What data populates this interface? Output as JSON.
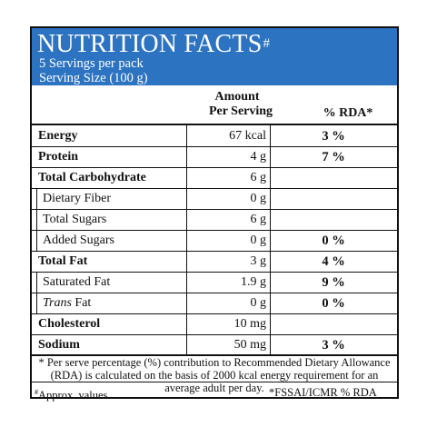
{
  "header": {
    "title": "NUTRITION FACTS",
    "title_mark": "#",
    "servings": "5 Servings per pack",
    "serving_size": "Serving Size (100 g)"
  },
  "columns": {
    "amount_line1": "Amount",
    "amount_line2": "Per Serving",
    "rda": "% RDA*"
  },
  "rows": [
    {
      "name": "Energy",
      "amount": "67 kcal",
      "rda": "3 %"
    },
    {
      "name": "Protein",
      "amount": "4 g",
      "rda": "7 %"
    },
    {
      "name": "Total Carbohydrate",
      "amount": "6 g",
      "rda": ""
    },
    {
      "name": "Dietary Fiber",
      "amount": "0 g",
      "rda": ""
    },
    {
      "name": "Total Sugars",
      "amount": "6 g",
      "rda": ""
    },
    {
      "name": "Added Sugars",
      "amount": "0 g",
      "rda": "0 %"
    },
    {
      "name": "Total Fat",
      "amount": "3 g",
      "rda": "4 %"
    },
    {
      "name": "Saturated Fat",
      "amount": "1.9 g",
      "rda": "9 %"
    },
    {
      "name_italic": "Trans",
      "name": " Fat",
      "amount": "0 g",
      "rda": "0 %"
    },
    {
      "name": "Cholesterol",
      "amount": "10 mg",
      "rda": ""
    },
    {
      "name": "Sodium",
      "amount": "50 mg",
      "rda": "3 %"
    }
  ],
  "footnote": {
    "line1": "* Per serve percentage (%) contribution to Recommended Dietary Allowance",
    "line2": "(RDA) is calculated on the basis of 2000 kcal energy requirement for an",
    "line3": "average adult per day.",
    "approx_mark": "#",
    "approx": "Approx. values",
    "source": "*FSSAI/ICMR % RDA"
  },
  "colors": {
    "header_bg": "#2c73c2",
    "text": "#111111"
  }
}
